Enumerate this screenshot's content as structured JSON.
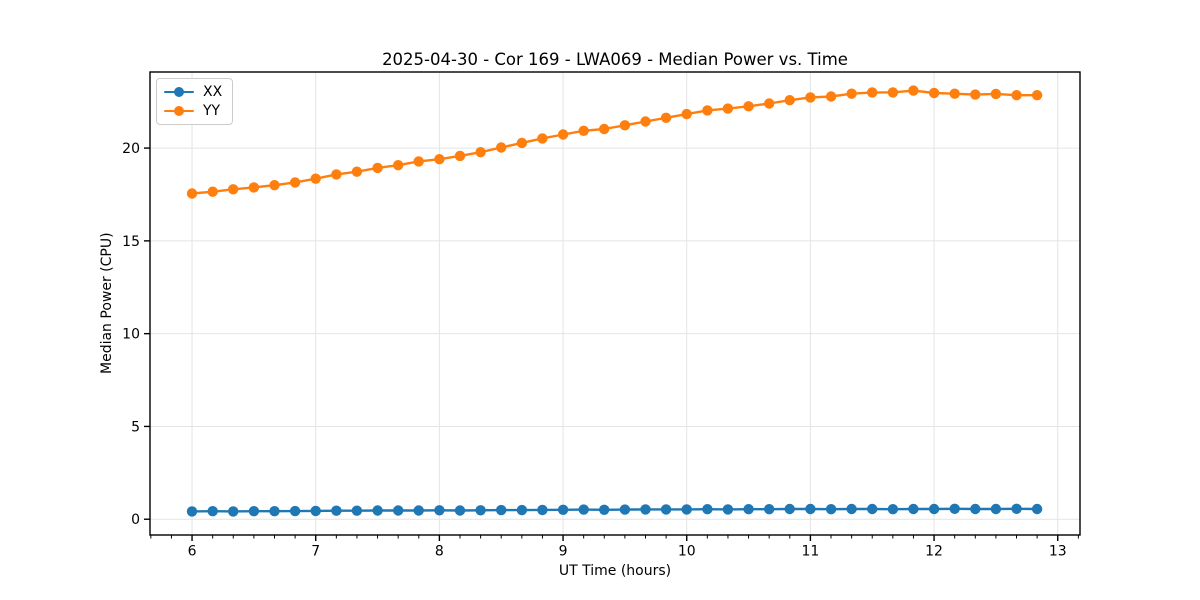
{
  "figure": {
    "background": "#ffffff",
    "text_color": "#000000",
    "grid_color": "#e4e4e4",
    "spine_color": "#000000"
  },
  "chart_data": {
    "type": "line",
    "title": "2025-04-30 - Cor 169 - LWA069 - Median Power vs. Time",
    "xlabel": "UT Time (hours)",
    "ylabel": "Median Power (CPU)",
    "xlim": [
      5.66,
      13.18
    ],
    "ylim": [
      -0.85,
      24.1
    ],
    "x_ticks": [
      6,
      7,
      8,
      9,
      10,
      11,
      12,
      13
    ],
    "y_ticks": [
      0,
      5,
      10,
      15,
      20
    ],
    "x_minor_interval": 0.16667,
    "grid": true,
    "legend": {
      "position": "upper-left"
    },
    "x": [
      6.0,
      6.167,
      6.333,
      6.5,
      6.667,
      6.833,
      7.0,
      7.167,
      7.333,
      7.5,
      7.667,
      7.833,
      8.0,
      8.167,
      8.333,
      8.5,
      8.667,
      8.833,
      9.0,
      9.167,
      9.333,
      9.5,
      9.667,
      9.833,
      10.0,
      10.167,
      10.333,
      10.5,
      10.667,
      10.833,
      11.0,
      11.167,
      11.333,
      11.5,
      11.667,
      11.833,
      12.0,
      12.167,
      12.333,
      12.5,
      12.667,
      12.833
    ],
    "series": [
      {
        "name": "XX",
        "color": "#1f77b4",
        "marker": "circle",
        "values": [
          0.42,
          0.43,
          0.42,
          0.43,
          0.43,
          0.44,
          0.45,
          0.46,
          0.46,
          0.47,
          0.47,
          0.47,
          0.48,
          0.47,
          0.48,
          0.49,
          0.49,
          0.5,
          0.51,
          0.52,
          0.51,
          0.52,
          0.53,
          0.53,
          0.53,
          0.54,
          0.53,
          0.54,
          0.54,
          0.55,
          0.55,
          0.54,
          0.55,
          0.55,
          0.54,
          0.55,
          0.55,
          0.56,
          0.55,
          0.55,
          0.56,
          0.55
        ]
      },
      {
        "name": "YY",
        "color": "#ff7f0e",
        "marker": "circle",
        "values": [
          17.55,
          17.65,
          17.78,
          17.88,
          18.0,
          18.15,
          18.35,
          18.58,
          18.73,
          18.93,
          19.08,
          19.28,
          19.4,
          19.58,
          19.78,
          20.03,
          20.28,
          20.52,
          20.73,
          20.93,
          21.03,
          21.23,
          21.43,
          21.63,
          21.83,
          22.03,
          22.13,
          22.25,
          22.4,
          22.58,
          22.73,
          22.78,
          22.93,
          23.0,
          23.0,
          23.1,
          22.97,
          22.93,
          22.88,
          22.92,
          22.85,
          22.85
        ]
      }
    ]
  }
}
